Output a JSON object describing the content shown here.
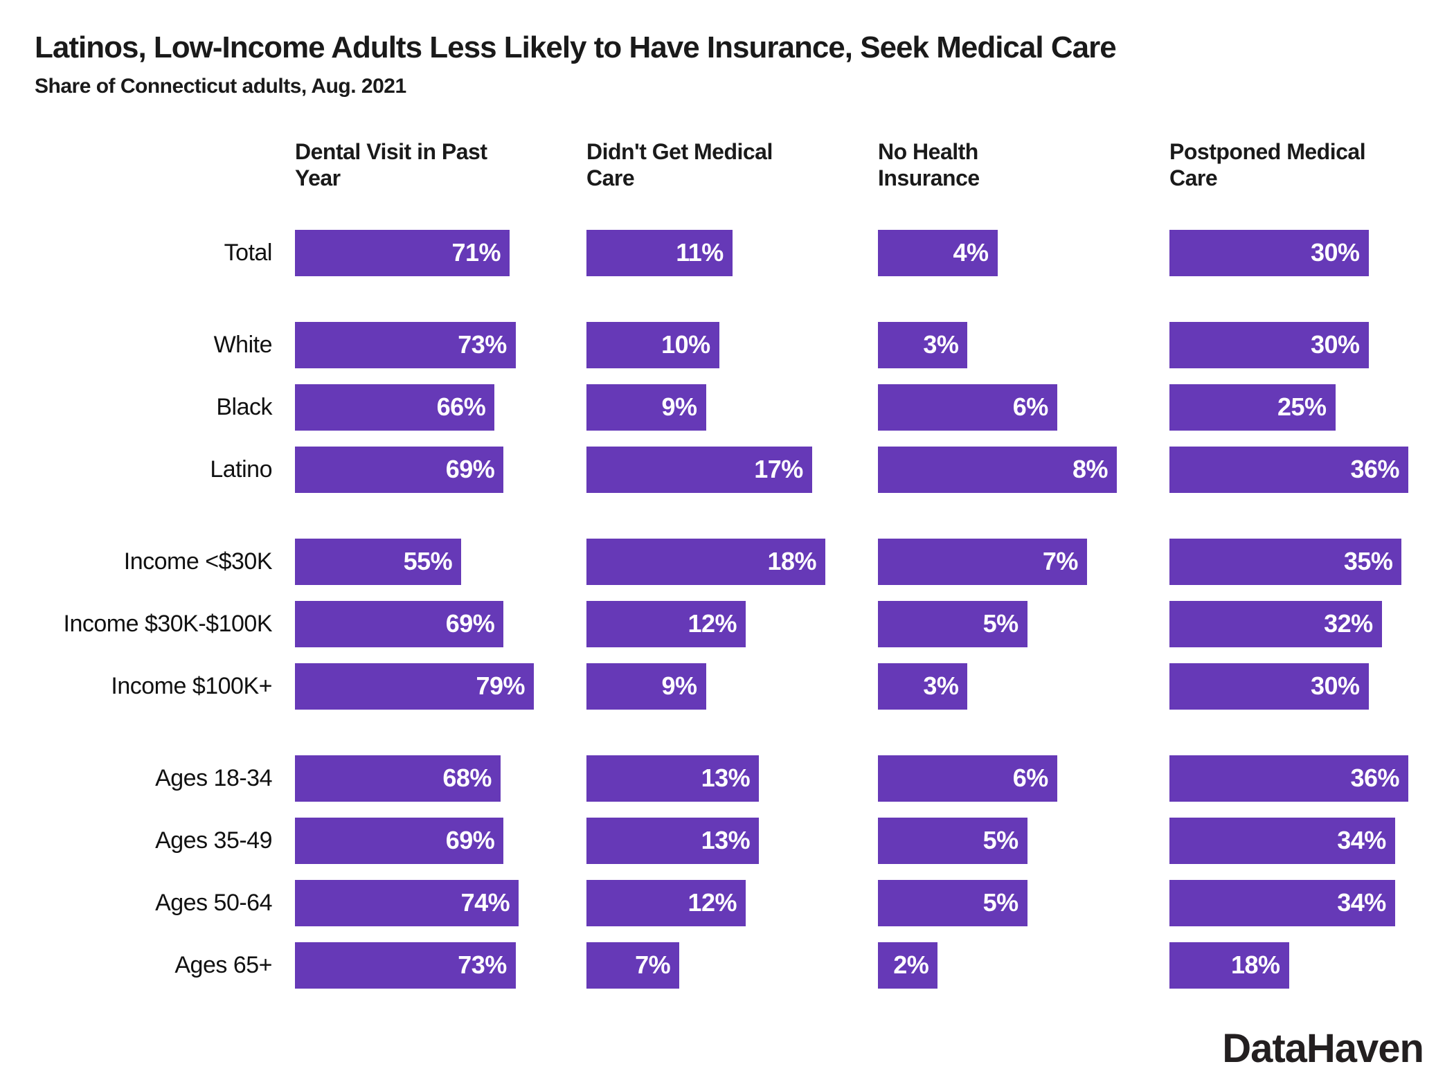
{
  "title": "Latinos, Low-Income Adults Less Likely to Have Insurance, Seek Medical Care",
  "subtitle": "Share of Connecticut adults, Aug. 2021",
  "logo_text": "DataHaven",
  "colors": {
    "bar": "#6639B7",
    "bar_value_label": "#FFFFFF",
    "text": "#1A1A1A",
    "background": "#FFFFFF",
    "logo": "#231F20"
  },
  "chart_data": {
    "type": "bar",
    "orientation": "horizontal",
    "facet_layout": "4 columns, independent x-scale per column (bars scaled to column max)",
    "value_suffix": "%",
    "categories": [
      "Total",
      "White",
      "Black",
      "Latino",
      "Income <$30K",
      "Income $30K-$100K",
      "Income $100K+",
      "Ages 18-34",
      "Ages 35-49",
      "Ages 50-64",
      "Ages 65+"
    ],
    "row_groups": [
      [
        "Total"
      ],
      [
        "White",
        "Black",
        "Latino"
      ],
      [
        "Income <$30K",
        "Income $30K-$100K",
        "Income $100K+"
      ],
      [
        "Ages 18-34",
        "Ages 35-49",
        "Ages 50-64",
        "Ages 65+"
      ]
    ],
    "group_end_rows": [
      0,
      3,
      6
    ],
    "series": [
      {
        "name": "Dental Visit in Past Year",
        "header_line1": "Dental Visit in Past",
        "header_line2": "Year",
        "axis_max": 79,
        "values": [
          71,
          73,
          66,
          69,
          55,
          69,
          79,
          68,
          69,
          74,
          73
        ]
      },
      {
        "name": "Didn't Get Medical Care",
        "header_line1": "Didn't Get Medical",
        "header_line2": "Care",
        "axis_max": 18,
        "values": [
          11,
          10,
          9,
          17,
          18,
          12,
          9,
          13,
          13,
          12,
          7
        ]
      },
      {
        "name": "No Health Insurance",
        "header_line1": "No Health",
        "header_line2": "Insurance",
        "axis_max": 8,
        "values": [
          4,
          3,
          6,
          8,
          7,
          5,
          3,
          6,
          5,
          5,
          2
        ]
      },
      {
        "name": "Postponed Medical Care",
        "header_line1": "Postponed Medical",
        "header_line2": "Care",
        "axis_max": 36,
        "values": [
          30,
          30,
          25,
          36,
          35,
          32,
          30,
          36,
          34,
          34,
          18
        ]
      }
    ]
  }
}
